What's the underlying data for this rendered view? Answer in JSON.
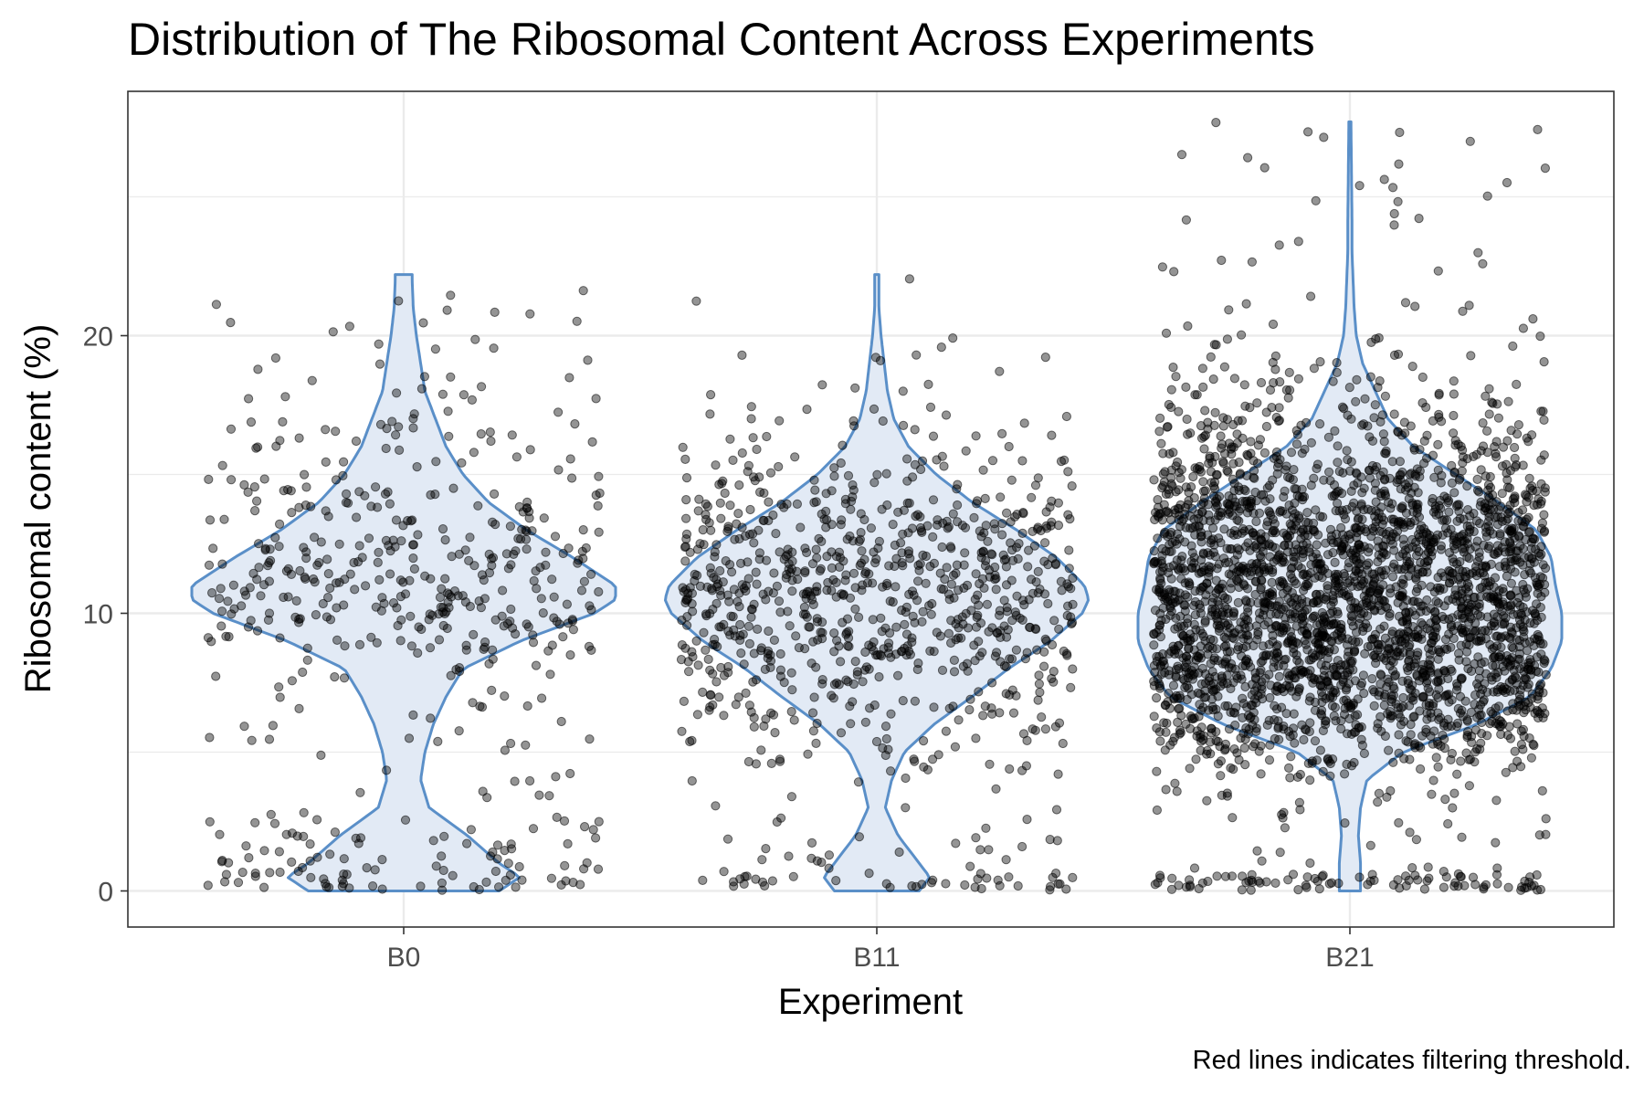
{
  "chart_data": {
    "type": "scatter",
    "title": "Distribution of The Ribosomal Content Across Experiments",
    "xlabel": "Experiment",
    "ylabel": "Ribosomal content (%)",
    "caption": "Red lines indicates filtering threshold.",
    "categories": [
      "B0",
      "B11",
      "B21"
    ],
    "yticks": [
      0,
      10,
      20
    ],
    "ylim": [
      -1.3,
      28.8
    ],
    "grid": true,
    "legend": "none",
    "colors": {
      "violin_fill": "#e2eaf5",
      "violin_stroke": "#5a8fc8",
      "point": "#000000",
      "panel_border": "#333333",
      "grid": "#ebebeb"
    },
    "series": [
      {
        "category": "B0",
        "n_points": 520,
        "point_ymax": 22.2,
        "violin_ymax": 22.2,
        "violin": [
          [
            0,
            0.45
          ],
          [
            0.5,
            0.55
          ],
          [
            1,
            0.45
          ],
          [
            2,
            0.3
          ],
          [
            3,
            0.12
          ],
          [
            4,
            0.08
          ],
          [
            5,
            0.1
          ],
          [
            6,
            0.14
          ],
          [
            7,
            0.2
          ],
          [
            8,
            0.28
          ],
          [
            9,
            0.55
          ],
          [
            10,
            0.9
          ],
          [
            10.5,
            1.0
          ],
          [
            11,
            1.0
          ],
          [
            12,
            0.8
          ],
          [
            13,
            0.58
          ],
          [
            14,
            0.4
          ],
          [
            15,
            0.28
          ],
          [
            16,
            0.2
          ],
          [
            17,
            0.15
          ],
          [
            18,
            0.1
          ],
          [
            19,
            0.08
          ],
          [
            20,
            0.06
          ],
          [
            21,
            0.045
          ],
          [
            22,
            0.04
          ],
          [
            22.2,
            0.04
          ]
        ]
      },
      {
        "category": "B11",
        "n_points": 900,
        "point_ymax": 22.2,
        "violin_ymax": 22.2,
        "violin": [
          [
            0,
            0.2
          ],
          [
            0.5,
            0.25
          ],
          [
            1,
            0.2
          ],
          [
            2,
            0.1
          ],
          [
            3,
            0.04
          ],
          [
            4,
            0.07
          ],
          [
            5,
            0.13
          ],
          [
            6,
            0.27
          ],
          [
            7,
            0.45
          ],
          [
            8,
            0.62
          ],
          [
            9,
            0.82
          ],
          [
            10,
            0.97
          ],
          [
            10.5,
            1.0
          ],
          [
            11,
            0.98
          ],
          [
            12,
            0.85
          ],
          [
            13,
            0.66
          ],
          [
            14,
            0.45
          ],
          [
            15,
            0.28
          ],
          [
            16,
            0.15
          ],
          [
            17,
            0.08
          ],
          [
            18,
            0.05
          ],
          [
            19,
            0.035
          ],
          [
            20,
            0.02
          ],
          [
            21,
            0.01
          ],
          [
            22.2,
            0.01
          ]
        ]
      },
      {
        "category": "B21",
        "n_points": 3000,
        "point_ymax": 27.7,
        "violin_ymax": 27.7,
        "violin": [
          [
            0,
            0.05
          ],
          [
            1,
            0.05
          ],
          [
            2,
            0.04
          ],
          [
            3,
            0.05
          ],
          [
            4,
            0.08
          ],
          [
            5,
            0.25
          ],
          [
            6,
            0.6
          ],
          [
            7,
            0.85
          ],
          [
            8,
            0.95
          ],
          [
            9,
            1.0
          ],
          [
            10,
            1.0
          ],
          [
            11,
            0.97
          ],
          [
            12,
            0.95
          ],
          [
            13,
            0.88
          ],
          [
            14,
            0.7
          ],
          [
            15,
            0.5
          ],
          [
            16,
            0.3
          ],
          [
            17,
            0.18
          ],
          [
            18,
            0.12
          ],
          [
            19,
            0.06
          ],
          [
            20,
            0.03
          ],
          [
            21,
            0.02
          ],
          [
            22,
            0.015
          ],
          [
            23,
            0.01
          ],
          [
            24,
            0.01
          ],
          [
            27.7,
            0.005
          ]
        ]
      }
    ]
  }
}
